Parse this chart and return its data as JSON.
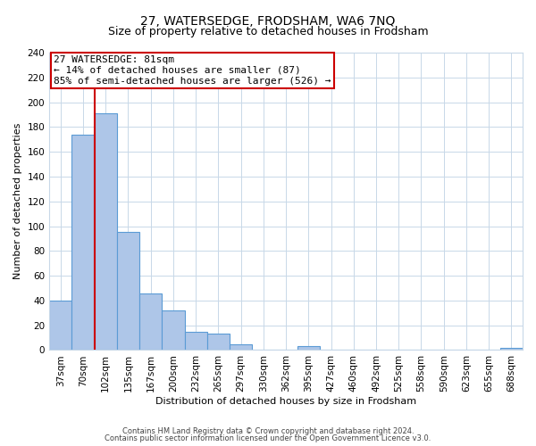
{
  "title": "27, WATERSEDGE, FRODSHAM, WA6 7NQ",
  "subtitle": "Size of property relative to detached houses in Frodsham",
  "xlabel": "Distribution of detached houses by size in Frodsham",
  "ylabel": "Number of detached properties",
  "bar_labels": [
    "37sqm",
    "70sqm",
    "102sqm",
    "135sqm",
    "167sqm",
    "200sqm",
    "232sqm",
    "265sqm",
    "297sqm",
    "330sqm",
    "362sqm",
    "395sqm",
    "427sqm",
    "460sqm",
    "492sqm",
    "525sqm",
    "558sqm",
    "590sqm",
    "623sqm",
    "655sqm",
    "688sqm"
  ],
  "bar_values": [
    40,
    174,
    191,
    95,
    46,
    32,
    15,
    13,
    5,
    0,
    0,
    3,
    0,
    0,
    0,
    0,
    0,
    0,
    0,
    0,
    2
  ],
  "bar_color": "#aec6e8",
  "bar_edge_color": "#5b9bd5",
  "ylim": [
    0,
    240
  ],
  "yticks": [
    0,
    20,
    40,
    60,
    80,
    100,
    120,
    140,
    160,
    180,
    200,
    220,
    240
  ],
  "vline_x": 1.5,
  "vline_color": "#cc0000",
  "annotation_title": "27 WATERSEDGE: 81sqm",
  "annotation_line1": "← 14% of detached houses are smaller (87)",
  "annotation_line2": "85% of semi-detached houses are larger (526) →",
  "annotation_box_color": "#ffffff",
  "annotation_box_edge": "#cc0000",
  "footer1": "Contains HM Land Registry data © Crown copyright and database right 2024.",
  "footer2": "Contains public sector information licensed under the Open Government Licence v3.0.",
  "background_color": "#ffffff",
  "grid_color": "#c8d8e8",
  "title_fontsize": 10,
  "subtitle_fontsize": 9,
  "axis_label_fontsize": 8,
  "tick_fontsize": 7.5,
  "annotation_fontsize": 8,
  "footer_fontsize": 6
}
